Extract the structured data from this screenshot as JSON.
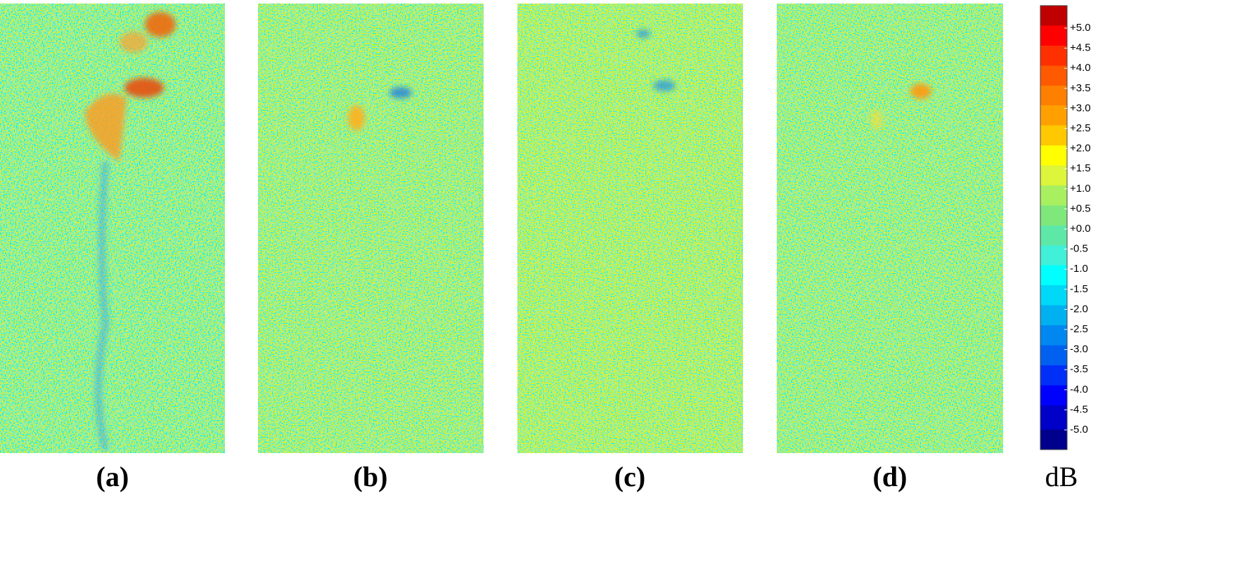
{
  "panels": [
    {
      "label": "(a)"
    },
    {
      "label": "(b)"
    },
    {
      "label": "(c)"
    },
    {
      "label": "(d)"
    }
  ],
  "colorbar": {
    "ticks": [
      "+5.0",
      "+4.5",
      "+4.0",
      "+3.5",
      "+3.0",
      "+2.5",
      "+2.0",
      "+1.5",
      "+1.0",
      "+0.5",
      "+0.0",
      "-0.5",
      "-1.0",
      "-1.5",
      "-2.0",
      "-2.5",
      "-3.0",
      "-3.5",
      "-4.0",
      "-4.5",
      "-5.0"
    ],
    "unit": "dB"
  }
}
